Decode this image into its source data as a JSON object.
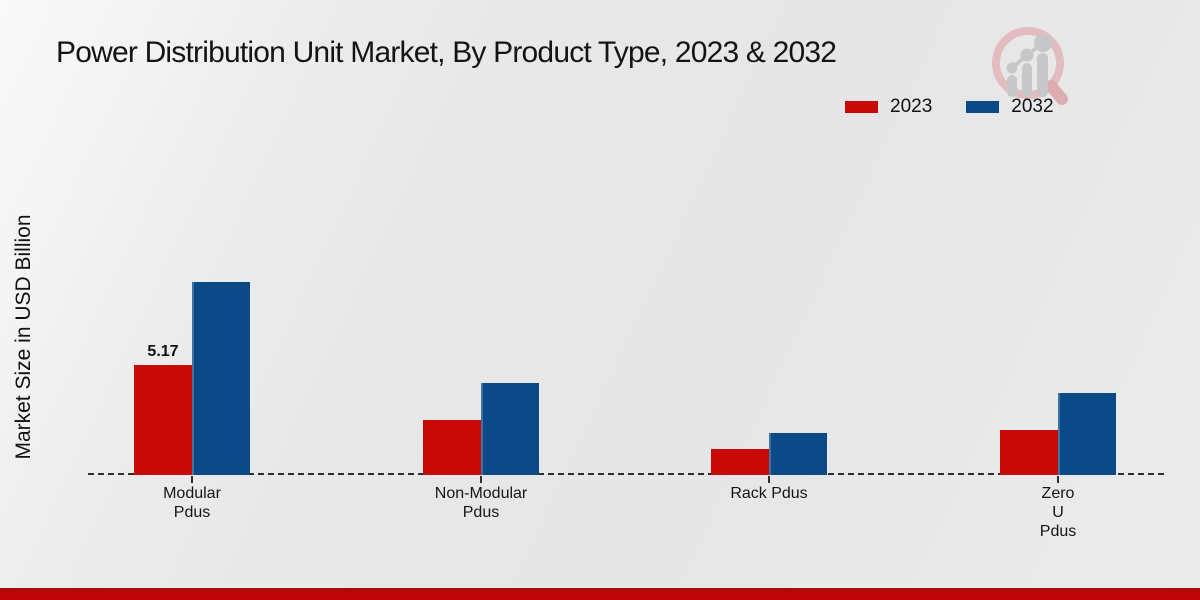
{
  "page": {
    "background_color": "#e9e9ea",
    "footer_bar_color": "#bb0606"
  },
  "header": {
    "title": "Power Distribution Unit Market, By Product Type, 2023 & 2032"
  },
  "logo": {
    "name": "market-research-magnifier-chart-logo",
    "ring_color": "#e2bcc0",
    "handle_color": "#dcacb1",
    "glyph_color": "#c7c7ca"
  },
  "legend": {
    "position": "top-right",
    "items": [
      {
        "label": "2023",
        "color": "#c90808"
      },
      {
        "label": "2032",
        "color": "#0b4a87"
      }
    ]
  },
  "chart_data": {
    "type": "bar",
    "title": "Power Distribution Unit Market, By Product Type, 2023 & 2032",
    "xlabel": "",
    "ylabel": "Market Size in USD Billion",
    "categories": [
      "Modular Pdus",
      "Non-Modular Pdus",
      "Rack Pdus",
      "Zero U Pdus"
    ],
    "category_label_lines": [
      [
        "Modular",
        "Pdus"
      ],
      [
        "Non-Modular",
        "Pdus"
      ],
      [
        "Rack Pdus"
      ],
      [
        "Zero",
        "U",
        "Pdus"
      ]
    ],
    "series": [
      {
        "name": "2023",
        "color": "#c90808",
        "values": [
          5.17,
          2.61,
          1.23,
          2.13
        ]
      },
      {
        "name": "2032",
        "color": "#0b4a87",
        "values": [
          9.13,
          4.35,
          2.0,
          3.87
        ]
      }
    ],
    "annotations": [
      {
        "text": "5.17",
        "series_index": 0,
        "category_index": 0
      }
    ],
    "ylim": [
      0,
      10
    ],
    "grid": false,
    "y_axis_ticks_visible": false,
    "baseline_style": "dashed",
    "legend_position": "top-right"
  }
}
